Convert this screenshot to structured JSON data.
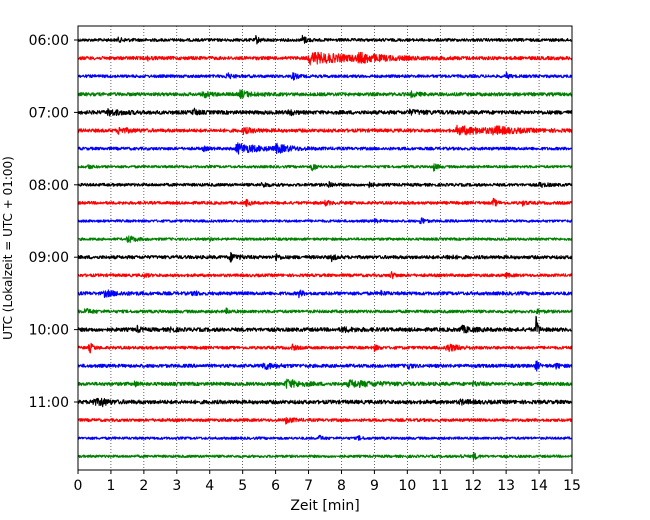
{
  "chart_data": {
    "type": "line",
    "xlabel": "Zeit  [min]",
    "ylabel": "UTC (Lokalzeit = UTC + 01:00)",
    "xlim": [
      0,
      15
    ],
    "x_ticks": [
      0,
      1,
      2,
      3,
      4,
      5,
      6,
      7,
      8,
      9,
      10,
      11,
      12,
      13,
      14,
      15
    ],
    "x_tick_labels": [
      "0",
      "1",
      "2",
      "3",
      "4",
      "5",
      "6",
      "7",
      "8",
      "9",
      "10",
      "11",
      "12",
      "13",
      "14",
      "15"
    ],
    "y_ticks": [
      "06:00",
      "07:00",
      "08:00",
      "09:00",
      "10:00",
      "11:00"
    ],
    "grid": "vertical dotted",
    "colors": [
      "#000000",
      "#ff0000",
      "#0000ff",
      "#008000"
    ],
    "row_minutes": 15,
    "rows_start": "06:00",
    "rows": [
      {
        "start": "06:00",
        "color": "#000000",
        "noise": 0.35,
        "events": [
          {
            "t": 5.4,
            "amp": 0.9,
            "dur": 0.1
          },
          {
            "t": 6.8,
            "amp": 1.1,
            "dur": 0.12
          },
          {
            "t": 1.2,
            "amp": 0.4,
            "dur": 0.2
          }
        ]
      },
      {
        "start": "06:15",
        "color": "#ff0000",
        "noise": 0.4,
        "events": [
          {
            "t": 7.0,
            "amp": 1.3,
            "dur": 1.2
          },
          {
            "t": 8.5,
            "amp": 0.8,
            "dur": 0.6
          },
          {
            "t": 2.1,
            "amp": 0.4,
            "dur": 0.1
          }
        ]
      },
      {
        "start": "06:30",
        "color": "#0000ff",
        "noise": 0.35,
        "events": [
          {
            "t": 4.5,
            "amp": 0.9,
            "dur": 0.12
          },
          {
            "t": 6.5,
            "amp": 0.9,
            "dur": 0.12
          },
          {
            "t": 13.0,
            "amp": 0.7,
            "dur": 0.08
          }
        ]
      },
      {
        "start": "06:45",
        "color": "#008000",
        "noise": 0.4,
        "events": [
          {
            "t": 3.8,
            "amp": 0.7,
            "dur": 0.2
          },
          {
            "t": 4.9,
            "amp": 0.8,
            "dur": 0.3
          },
          {
            "t": 10.1,
            "amp": 0.5,
            "dur": 0.2
          }
        ]
      },
      {
        "start": "07:00",
        "color": "#000000",
        "noise": 0.45,
        "events": [
          {
            "t": 0.9,
            "amp": 0.6,
            "dur": 0.4
          },
          {
            "t": 3.5,
            "amp": 0.9,
            "dur": 0.1
          },
          {
            "t": 6.4,
            "amp": 0.9,
            "dur": 0.1
          },
          {
            "t": 10.0,
            "amp": 0.4,
            "dur": 0.5
          }
        ]
      },
      {
        "start": "07:15",
        "color": "#ff0000",
        "noise": 0.4,
        "events": [
          {
            "t": 1.2,
            "amp": 0.7,
            "dur": 0.3
          },
          {
            "t": 5.0,
            "amp": 0.6,
            "dur": 0.3
          },
          {
            "t": 11.5,
            "amp": 0.9,
            "dur": 1.0
          },
          {
            "t": 12.6,
            "amp": 0.7,
            "dur": 0.5
          }
        ]
      },
      {
        "start": "07:30",
        "color": "#0000ff",
        "noise": 0.35,
        "events": [
          {
            "t": 4.8,
            "amp": 1.2,
            "dur": 0.6
          },
          {
            "t": 6.0,
            "amp": 0.9,
            "dur": 0.4
          },
          {
            "t": 3.8,
            "amp": 0.5,
            "dur": 0.1
          }
        ]
      },
      {
        "start": "07:45",
        "color": "#008000",
        "noise": 0.3,
        "events": [
          {
            "t": 0.3,
            "amp": 0.5,
            "dur": 0.1
          },
          {
            "t": 7.1,
            "amp": 1.1,
            "dur": 0.1
          },
          {
            "t": 10.8,
            "amp": 0.9,
            "dur": 0.1
          }
        ]
      },
      {
        "start": "08:00",
        "color": "#000000",
        "noise": 0.35,
        "events": [
          {
            "t": 5.6,
            "amp": 0.8,
            "dur": 0.1
          },
          {
            "t": 7.6,
            "amp": 0.9,
            "dur": 0.1
          },
          {
            "t": 8.8,
            "amp": 0.7,
            "dur": 0.1
          },
          {
            "t": 14.0,
            "amp": 0.5,
            "dur": 0.2
          }
        ]
      },
      {
        "start": "08:15",
        "color": "#ff0000",
        "noise": 0.35,
        "events": [
          {
            "t": 5.1,
            "amp": 0.8,
            "dur": 0.1
          },
          {
            "t": 7.5,
            "amp": 0.5,
            "dur": 0.15
          },
          {
            "t": 12.6,
            "amp": 1.0,
            "dur": 0.1
          },
          {
            "t": 13.5,
            "amp": 0.5,
            "dur": 0.1
          }
        ]
      },
      {
        "start": "08:30",
        "color": "#0000ff",
        "noise": 0.3,
        "events": [
          {
            "t": 10.4,
            "amp": 1.0,
            "dur": 0.1
          },
          {
            "t": 9.0,
            "amp": 0.4,
            "dur": 0.1
          }
        ]
      },
      {
        "start": "08:45",
        "color": "#008000",
        "noise": 0.3,
        "events": [
          {
            "t": 1.5,
            "amp": 0.9,
            "dur": 0.2
          },
          {
            "t": 4.0,
            "amp": 0.3,
            "dur": 0.1
          }
        ]
      },
      {
        "start": "09:00",
        "color": "#000000",
        "noise": 0.4,
        "events": [
          {
            "t": 4.6,
            "amp": 1.0,
            "dur": 0.2
          },
          {
            "t": 6.0,
            "amp": 0.8,
            "dur": 0.1
          },
          {
            "t": 7.7,
            "amp": 0.7,
            "dur": 0.1
          },
          {
            "t": 11.2,
            "amp": 0.4,
            "dur": 0.2
          }
        ]
      },
      {
        "start": "09:15",
        "color": "#ff0000",
        "noise": 0.35,
        "events": [
          {
            "t": 9.5,
            "amp": 0.9,
            "dur": 0.1
          },
          {
            "t": 2.0,
            "amp": 0.4,
            "dur": 0.1
          },
          {
            "t": 13.0,
            "amp": 0.4,
            "dur": 0.1
          }
        ]
      },
      {
        "start": "09:30",
        "color": "#0000ff",
        "noise": 0.4,
        "events": [
          {
            "t": 0.8,
            "amp": 0.6,
            "dur": 0.4
          },
          {
            "t": 3.5,
            "amp": 0.6,
            "dur": 0.1
          },
          {
            "t": 6.7,
            "amp": 0.8,
            "dur": 0.1
          },
          {
            "t": 9.2,
            "amp": 0.5,
            "dur": 0.1
          }
        ]
      },
      {
        "start": "09:45",
        "color": "#008000",
        "noise": 0.35,
        "events": [
          {
            "t": 0.2,
            "amp": 0.6,
            "dur": 0.2
          },
          {
            "t": 4.5,
            "amp": 0.5,
            "dur": 0.1
          },
          {
            "t": 13.9,
            "amp": 0.5,
            "dur": 0.1
          }
        ]
      },
      {
        "start": "10:00",
        "color": "#000000",
        "noise": 0.45,
        "events": [
          {
            "t": 1.8,
            "amp": 0.6,
            "dur": 0.1
          },
          {
            "t": 2.8,
            "amp": 0.7,
            "dur": 0.1
          },
          {
            "t": 11.6,
            "amp": 0.8,
            "dur": 0.3
          },
          {
            "t": 13.9,
            "amp": 3.5,
            "dur": 0.06
          },
          {
            "t": 8.0,
            "amp": 0.4,
            "dur": 0.4
          }
        ]
      },
      {
        "start": "10:15",
        "color": "#ff0000",
        "noise": 0.35,
        "events": [
          {
            "t": 0.35,
            "amp": 1.2,
            "dur": 0.1
          },
          {
            "t": 6.5,
            "amp": 0.7,
            "dur": 0.1
          },
          {
            "t": 9.0,
            "amp": 0.6,
            "dur": 0.1
          },
          {
            "t": 11.2,
            "amp": 0.9,
            "dur": 0.3
          }
        ]
      },
      {
        "start": "10:30",
        "color": "#0000ff",
        "noise": 0.4,
        "events": [
          {
            "t": 5.6,
            "amp": 0.8,
            "dur": 0.3
          },
          {
            "t": 10.0,
            "amp": 0.8,
            "dur": 0.1
          },
          {
            "t": 13.9,
            "amp": 1.6,
            "dur": 0.06
          },
          {
            "t": 14.5,
            "amp": 0.6,
            "dur": 0.1
          }
        ]
      },
      {
        "start": "10:45",
        "color": "#008000",
        "noise": 0.4,
        "events": [
          {
            "t": 1.7,
            "amp": 0.6,
            "dur": 0.1
          },
          {
            "t": 6.3,
            "amp": 1.0,
            "dur": 0.4
          },
          {
            "t": 8.2,
            "amp": 0.7,
            "dur": 0.8
          },
          {
            "t": 12.0,
            "amp": 0.4,
            "dur": 0.2
          }
        ]
      },
      {
        "start": "11:00",
        "color": "#000000",
        "noise": 0.45,
        "events": [
          {
            "t": 0.4,
            "amp": 0.7,
            "dur": 0.4
          },
          {
            "t": 0.7,
            "amp": 0.7,
            "dur": 0.1
          },
          {
            "t": 11.6,
            "amp": 0.4,
            "dur": 0.3
          }
        ]
      },
      {
        "start": "11:15",
        "color": "#ff0000",
        "noise": 0.35,
        "events": [
          {
            "t": 6.3,
            "amp": 0.7,
            "dur": 0.2
          }
        ]
      },
      {
        "start": "11:30",
        "color": "#0000ff",
        "noise": 0.3,
        "events": [
          {
            "t": 7.3,
            "amp": 0.7,
            "dur": 0.1
          },
          {
            "t": 8.5,
            "amp": 0.5,
            "dur": 0.1
          }
        ]
      },
      {
        "start": "11:45",
        "color": "#008000",
        "noise": 0.3,
        "events": [
          {
            "t": 12.0,
            "amp": 0.9,
            "dur": 0.1
          },
          {
            "t": 11.6,
            "amp": 0.4,
            "dur": 0.1
          }
        ]
      }
    ]
  }
}
